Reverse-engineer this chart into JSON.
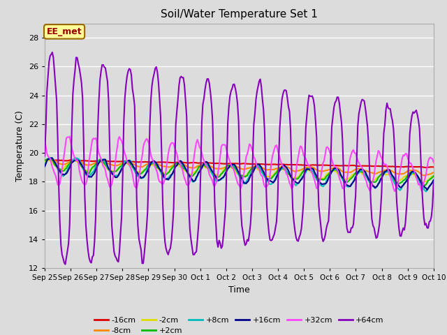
{
  "title": "Soil/Water Temperature Set 1",
  "xlabel": "Time",
  "ylabel": "Temperature (C)",
  "ylim": [
    12,
    29
  ],
  "yticks": [
    12,
    14,
    16,
    18,
    20,
    22,
    24,
    26,
    28
  ],
  "background_color": "#dcdcdc",
  "annotation_text": "EE_met",
  "annotation_bg": "#ffff99",
  "annotation_border": "#996600",
  "series_colors": {
    "-16cm": "#dd0000",
    "-8cm": "#ff8800",
    "-2cm": "#dddd00",
    "+2cm": "#00bb00",
    "+8cm": "#00bbbb",
    "+16cm": "#000088",
    "+32cm": "#ff44ff",
    "+64cm": "#8800bb"
  },
  "n_points": 360,
  "tick_labels": [
    "Sep 25",
    "Sep 26",
    "Sep 27",
    "Sep 28",
    "Sep 29",
    "Sep 30",
    "Oct 1",
    "Oct 2",
    "Oct 3",
    "Oct 4",
    "Oct 5",
    "Oct 6",
    "Oct 7",
    "Oct 8",
    "Oct 9",
    "Oct 10"
  ]
}
